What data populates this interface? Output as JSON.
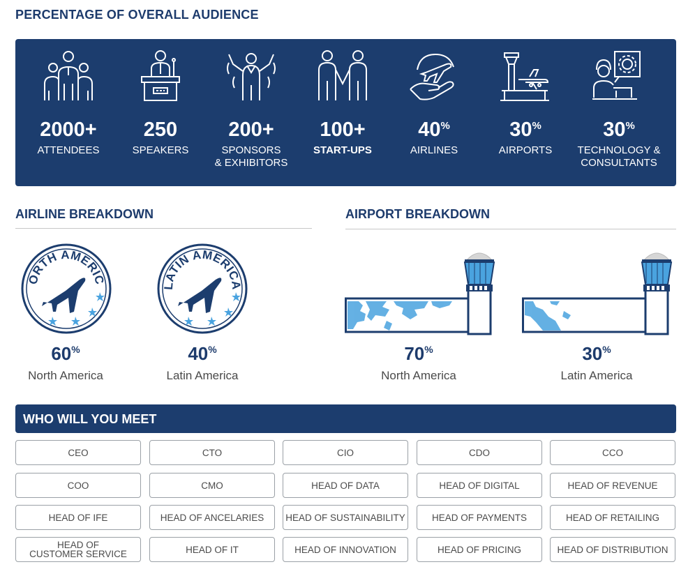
{
  "audience": {
    "title": "PERCENTAGE OF OVERALL AUDIENCE",
    "stats": [
      {
        "value": "2000+",
        "suffix": "",
        "label": "ATTENDEES",
        "icon": "people-group-icon"
      },
      {
        "value": "250",
        "suffix": "",
        "label": "SPEAKERS",
        "icon": "speaker-podium-icon"
      },
      {
        "value": "200+",
        "suffix": "",
        "label": "SPONSORS\n& EXHIBITORS",
        "icon": "exhibitor-icon"
      },
      {
        "value": "100+",
        "suffix": "",
        "label": "START-UPS",
        "icon": "handshake-icon"
      },
      {
        "value": "40",
        "suffix": "%",
        "label": "AIRLINES",
        "icon": "plane-hand-icon"
      },
      {
        "value": "30",
        "suffix": "%",
        "label": "AIRPORTS",
        "icon": "airport-tower-icon"
      },
      {
        "value": "30",
        "suffix": "%",
        "label": "TECHNOLOGY &\nCONSULTANTS",
        "icon": "consultant-gear-icon"
      }
    ]
  },
  "airline_breakdown": {
    "title": "AIRLINE BREAKDOWN",
    "regions": [
      {
        "badge_text": "NORTH AMERICA",
        "value": "60",
        "suffix": "%",
        "name": "North America"
      },
      {
        "badge_text": "LATIN AMERICA",
        "value": "40",
        "suffix": "%",
        "name": "Latin America"
      }
    ]
  },
  "airport_breakdown": {
    "title": "AIRPORT BREAKDOWN",
    "regions": [
      {
        "value": "70",
        "suffix": "%",
        "name": "North America"
      },
      {
        "value": "30",
        "suffix": "%",
        "name": "Latin America"
      }
    ]
  },
  "meet": {
    "title": "WHO WILL YOU MEET",
    "roles": [
      "CEO",
      "CTO",
      "CIO",
      "CDO",
      "CCO",
      "COO",
      "CMO",
      "HEAD OF DATA",
      "HEAD OF DIGITAL",
      "HEAD OF REVENUE",
      "HEAD OF IFE",
      "HEAD OF ANCELARIES",
      "HEAD OF SUSTAINABILITY",
      "HEAD OF PAYMENTS",
      "HEAD OF RETAILING",
      "HEAD OF\nCUSTOMER SERVICE",
      "HEAD OF IT",
      "HEAD OF INNOVATION",
      "HEAD OF PRICING",
      "HEAD OF DISTRIBUTION"
    ]
  },
  "colors": {
    "navy": "#1c3d6e",
    "accent_blue": "#4aa3df",
    "text_gray": "#4a4a4a"
  }
}
